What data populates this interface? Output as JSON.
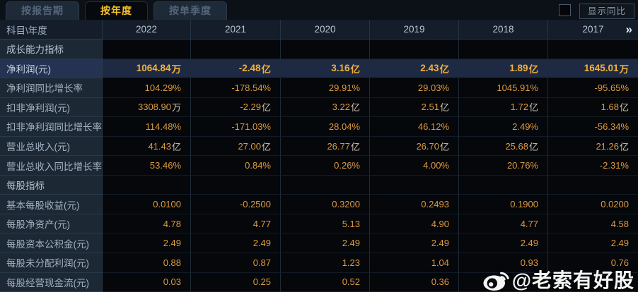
{
  "tabs": [
    {
      "label": "按报告期",
      "active": false
    },
    {
      "label": "按年度",
      "active": true
    },
    {
      "label": "按单季度",
      "active": false
    }
  ],
  "controls": {
    "show_yoy_label": "显示同比",
    "checkbox_checked": false
  },
  "table": {
    "corner_label": "科目\\年度",
    "years": [
      "2022",
      "2021",
      "2020",
      "2019",
      "2018",
      "2017"
    ],
    "more_icon": "»",
    "rows": [
      {
        "type": "section",
        "label": "成长能力指标",
        "values": [
          "",
          "",
          "",
          "",
          "",
          ""
        ]
      },
      {
        "type": "data",
        "highlight": true,
        "label": "净利润(元)",
        "values": [
          "1064.84万",
          "-2.48亿",
          "3.16亿",
          "2.43亿",
          "1.89亿",
          "1645.01万"
        ]
      },
      {
        "type": "data",
        "label": "净利润同比增长率",
        "values": [
          "104.29%",
          "-178.54%",
          "29.91%",
          "29.03%",
          "1045.91%",
          "-95.65%"
        ]
      },
      {
        "type": "data",
        "label": "扣非净利润(元)",
        "values": [
          "3308.90万",
          "-2.29亿",
          "3.22亿",
          "2.51亿",
          "1.72亿",
          "1.68亿"
        ]
      },
      {
        "type": "data",
        "label": "扣非净利润同比增长率",
        "values": [
          "114.48%",
          "-171.03%",
          "28.04%",
          "46.12%",
          "2.49%",
          "-56.34%"
        ]
      },
      {
        "type": "data",
        "label": "营业总收入(元)",
        "values": [
          "41.43亿",
          "27.00亿",
          "26.77亿",
          "26.70亿",
          "25.68亿",
          "21.26亿"
        ]
      },
      {
        "type": "data",
        "label": "营业总收入同比增长率",
        "values": [
          "53.46%",
          "0.84%",
          "0.26%",
          "4.00%",
          "20.76%",
          "-2.31%"
        ]
      },
      {
        "type": "section",
        "label": "每股指标",
        "values": [
          "",
          "",
          "",
          "",
          "",
          ""
        ]
      },
      {
        "type": "data",
        "label": "基本每股收益(元)",
        "values": [
          "0.0100",
          "-0.2500",
          "0.3200",
          "0.2493",
          "0.1900",
          "0.0200"
        ]
      },
      {
        "type": "data",
        "label": "每股净资产(元)",
        "values": [
          "4.78",
          "4.77",
          "5.13",
          "4.90",
          "4.77",
          "4.58"
        ]
      },
      {
        "type": "data",
        "label": "每股资本公积金(元)",
        "values": [
          "2.49",
          "2.49",
          "2.49",
          "2.49",
          "2.49",
          "2.49"
        ]
      },
      {
        "type": "data",
        "label": "每股未分配利润(元)",
        "values": [
          "0.88",
          "0.87",
          "1.23",
          "1.04",
          "0.93",
          "0.76"
        ]
      },
      {
        "type": "data",
        "label": "每股经营现金流(元)",
        "values": [
          "0.03",
          "0.25",
          "0.52",
          "0.36",
          "",
          ""
        ]
      }
    ]
  },
  "watermark": {
    "icon": "weibo-icon",
    "text": "@老索有好股"
  },
  "colors": {
    "accent_value_gold": "#dd9b41",
    "highlight_value_gold": "#f2b13d",
    "tab_active_text": "#f4c12d",
    "label_column_bg": "#1d2835",
    "highlight_row_bg": "#1e2a43",
    "watermark_text": "#ffffff"
  }
}
